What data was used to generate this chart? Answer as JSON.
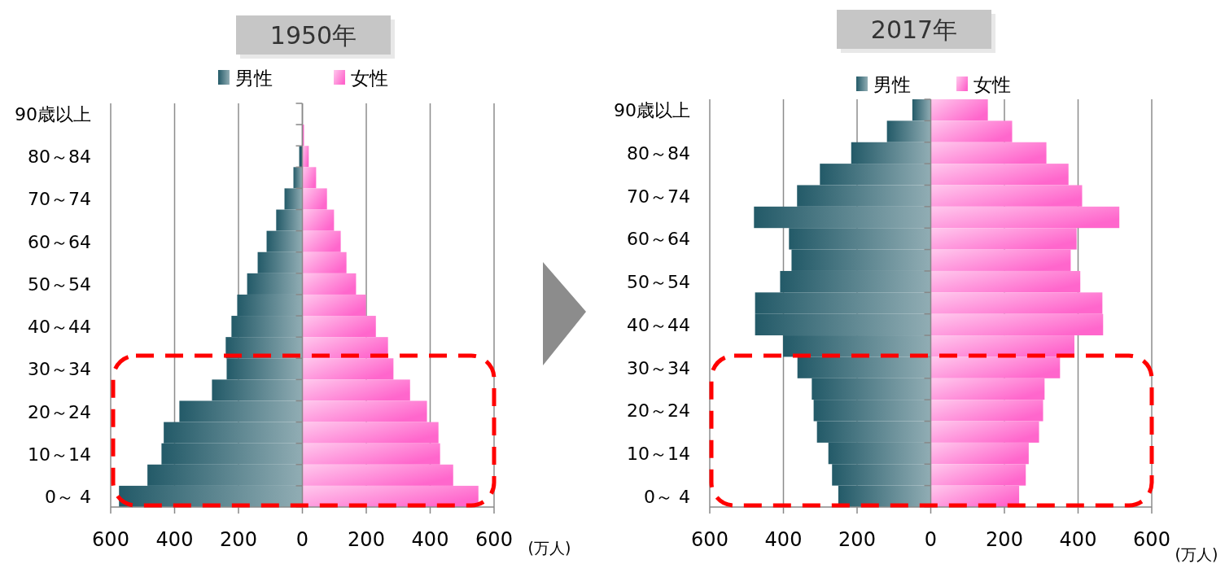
{
  "chart_data": [
    {
      "type": "bar",
      "title": "1950年",
      "orientation": "horizontal",
      "stacked": true,
      "categories": [
        "90歳以上",
        null,
        "80～84",
        null,
        "70～74",
        null,
        "60～64",
        null,
        "50～54",
        null,
        "40～44",
        null,
        "30～34",
        null,
        "20～24",
        null,
        "10～14",
        null,
        "0～ 4"
      ],
      "series": [
        {
          "name": "男性",
          "color": "#235a68",
          "values": [
            0,
            -1,
            -10,
            -28,
            -56,
            -82,
            -112,
            -140,
            -173,
            -204,
            -222,
            -240,
            -237,
            -283,
            -385,
            -434,
            -441,
            -485,
            -574
          ]
        },
        {
          "name": "女性",
          "color": "#ff66cc",
          "values": [
            0,
            5,
            20,
            43,
            77,
            99,
            120,
            138,
            168,
            199,
            230,
            268,
            285,
            337,
            390,
            426,
            431,
            472,
            551
          ]
        }
      ],
      "xlim": [
        -600,
        600
      ],
      "xticks": [
        {
          "value": -600,
          "label": "600"
        },
        {
          "value": -400,
          "label": "400"
        },
        {
          "value": -200,
          "label": "200"
        },
        0,
        200,
        400,
        600
      ],
      "grid": "x",
      "legend": "top",
      "annotations": [
        "(万人)"
      ]
    },
    {
      "type": "bar",
      "title": "2017年",
      "orientation": "horizontal",
      "stacked": true,
      "categories": [
        "90歳以上",
        null,
        "80～84",
        null,
        "70～74",
        null,
        "60～64",
        null,
        "50～54",
        null,
        "40～44",
        null,
        "30～34",
        null,
        "20～24",
        null,
        "10～14",
        null,
        "0～ 4"
      ],
      "series": [
        {
          "name": "男性",
          "color": "#235a68",
          "values": [
            -50,
            -119,
            -216,
            -301,
            -363,
            -480,
            -385,
            -378,
            -409,
            -477,
            -477,
            -401,
            -362,
            -323,
            -318,
            -309,
            -278,
            -268,
            -251
          ]
        },
        {
          "name": "女性",
          "color": "#ff66cc",
          "values": [
            155,
            221,
            314,
            374,
            411,
            512,
            396,
            380,
            406,
            466,
            468,
            390,
            351,
            309,
            305,
            294,
            266,
            258,
            240
          ]
        }
      ],
      "xlim": [
        -600,
        600
      ],
      "xticks": [
        {
          "value": -600,
          "label": "600"
        },
        {
          "value": -400,
          "label": "400"
        },
        {
          "value": -200,
          "label": "200"
        },
        0,
        200,
        400,
        600
      ],
      "grid": "x",
      "legend": "top",
      "annotations": [
        "(万人)"
      ]
    }
  ]
}
